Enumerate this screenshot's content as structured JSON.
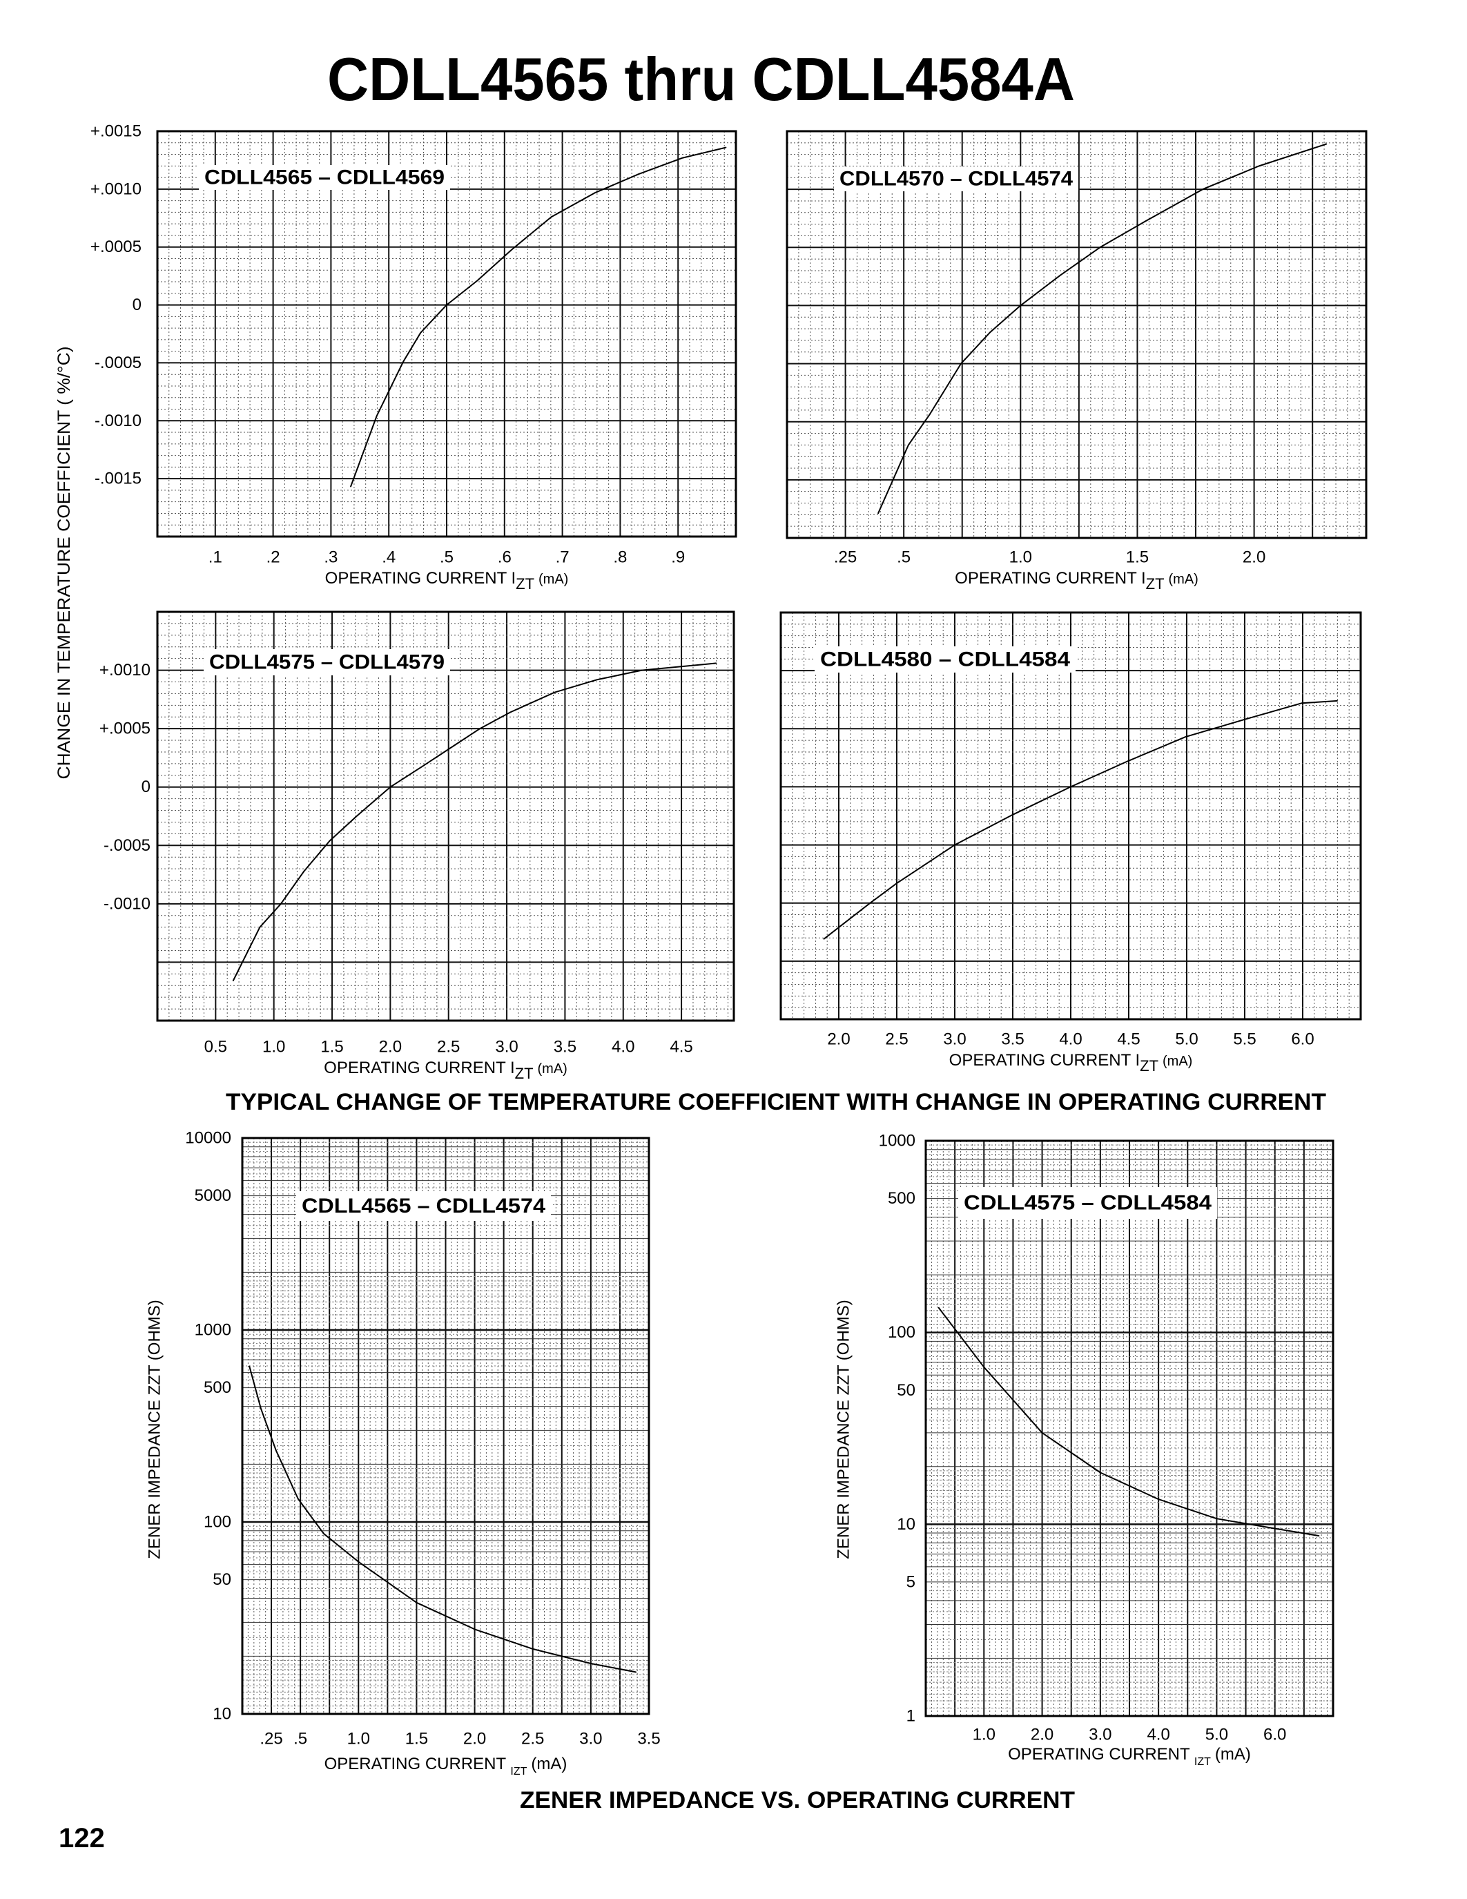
{
  "title": "CDLL4565 thru CDLL4584A",
  "page_number": "122",
  "section1": {
    "caption": "TYPICAL CHANGE OF TEMPERATURE COEFFICIENT WITH CHANGE IN OPERATING CURRENT",
    "ylabel": "CHANGE IN TEMPERATURE COEFFICIENT ( %/°C)"
  },
  "section2": {
    "caption": "ZENER IMPEDANCE VS. OPERATING CURRENT"
  },
  "chart_data": [
    {
      "type": "line",
      "title": "CDLL4565 – CDLL4569",
      "xlabel": "OPERATING CURRENT I",
      "xlabel_sub": "ZT",
      "xlabel_unit": "(mA)",
      "xscale": "linear",
      "yscale": "linear",
      "grid": true,
      "xlim": [
        0,
        1.0
      ],
      "ylim": [
        -0.002,
        0.0015
      ],
      "xticks": [
        0.1,
        0.2,
        0.3,
        0.4,
        0.5,
        0.6,
        0.7,
        0.8,
        0.9
      ],
      "xtick_labels": [
        ".1",
        ".2",
        ".3",
        ".4",
        ".5",
        ".6",
        ".7",
        ".8",
        ".9"
      ],
      "yticks": [
        0.0015,
        0.001,
        0.0005,
        0,
        -0.0005,
        -0.001,
        -0.0015
      ],
      "ytick_labels": [
        "+.0015",
        "+.0010",
        "+.0005",
        "0",
        "-.0005",
        "-.0010",
        "-.0015"
      ],
      "series": [
        {
          "x": [
            0.334,
            0.379,
            0.425,
            0.455,
            0.5,
            0.553,
            0.613,
            0.681,
            0.757,
            0.832,
            0.908,
            0.983
          ],
          "y": [
            -0.00157,
            -0.00096,
            -0.00049,
            -0.00024,
            0,
            0.00021,
            0.00048,
            0.00076,
            0.00097,
            0.00113,
            0.00127,
            0.00136
          ]
        }
      ]
    },
    {
      "type": "line",
      "title": "CDLL4570 – CDLL4574",
      "xlabel": "OPERATING CURRENT I",
      "xlabel_sub": "ZT",
      "xlabel_unit": "(mA)",
      "xscale": "linear",
      "yscale": "linear",
      "grid": true,
      "xlim": [
        0,
        2.48
      ],
      "ylim": [
        -0.002,
        0.0015
      ],
      "xticks": [
        0.25,
        0.5,
        1.0,
        1.5,
        2.0
      ],
      "xtick_labels": [
        ".25",
        ".5",
        "1.0",
        "1.5",
        "2.0"
      ],
      "yticks": [],
      "ytick_labels": [],
      "series": [
        {
          "x": [
            0.39,
            0.52,
            0.61,
            0.745,
            0.87,
            1.0,
            1.17,
            1.34,
            1.53,
            1.78,
            2.02,
            2.31
          ],
          "y": [
            -0.00179,
            -0.0012,
            -0.00094,
            -0.0005,
            -0.00023,
            0,
            0.00026,
            0.0005,
            0.00072,
            0.001,
            0.0012,
            0.00139
          ]
        }
      ]
    },
    {
      "type": "line",
      "title": "CDLL4575 – CDLL4579",
      "xlabel": "OPERATING CURRENT I",
      "xlabel_sub": "ZT",
      "xlabel_unit": "(mA)",
      "xscale": "linear",
      "yscale": "linear",
      "grid": true,
      "xlim": [
        0,
        4.95
      ],
      "ylim": [
        -0.002,
        0.0015
      ],
      "xticks": [
        0.5,
        1.0,
        1.5,
        2.0,
        2.5,
        3.0,
        3.5,
        4.0,
        4.5
      ],
      "xtick_labels": [
        "0.5",
        "1.0",
        "1.5",
        "2.0",
        "2.5",
        "3.0",
        "3.5",
        "4.0",
        "4.5"
      ],
      "yticks": [
        0.001,
        0.0005,
        0,
        -0.0005,
        -0.001
      ],
      "ytick_labels": [
        "+.0010",
        "+.0005",
        "0",
        "-.0005",
        "-.0010"
      ],
      "series": [
        {
          "x": [
            0.65,
            0.88,
            1.06,
            1.26,
            1.48,
            1.71,
            2.0,
            2.28,
            2.77,
            3.03,
            3.41,
            3.78,
            4.16,
            4.8
          ],
          "y": [
            -0.00166,
            -0.0012,
            -0.001,
            -0.00072,
            -0.00046,
            -0.00025,
            0,
            0.00018,
            0.0005,
            0.00064,
            0.00081,
            0.00092,
            0.001,
            0.00106
          ]
        }
      ]
    },
    {
      "type": "line",
      "title": "CDLL4580 – CDLL4584",
      "xlabel": "OPERATING CURRENT I",
      "xlabel_sub": "ZT",
      "xlabel_unit": "(mA)",
      "xscale": "linear",
      "yscale": "linear",
      "grid": true,
      "xlim": [
        1.5,
        6.5
      ],
      "ylim": [
        -0.002,
        0.0015
      ],
      "xticks": [
        2.0,
        2.5,
        3.0,
        3.5,
        4.0,
        4.5,
        5.0,
        5.5,
        6.0
      ],
      "xtick_labels": [
        "2.0",
        "2.5",
        "3.0",
        "3.5",
        "4.0",
        "4.5",
        "5.0",
        "5.5",
        "6.0"
      ],
      "yticks": [],
      "ytick_labels": [],
      "series": [
        {
          "x": [
            1.87,
            2.27,
            2.5,
            3.0,
            3.5,
            4.0,
            4.49,
            4.99,
            5.5,
            5.99,
            6.3
          ],
          "y": [
            -0.00131,
            -0.001,
            -0.00083,
            -0.0005,
            -0.00024,
            0,
            0.00022,
            0.00043,
            0.00058,
            0.00072,
            0.00074
          ]
        }
      ]
    },
    {
      "type": "line",
      "title": "CDLL4565 – CDLL4574",
      "xlabel": "OPERATING CURRENT ",
      "xlabel_sub": "IZT",
      "xlabel_unit": "(mA)",
      "ylabel": "ZENER IMPEDANCE ZZT (OHMS)",
      "xscale": "linear",
      "yscale": "log",
      "grid": true,
      "xlim": [
        0,
        3.5
      ],
      "ylim": [
        10,
        10000
      ],
      "xticks": [
        0.25,
        0.5,
        1.0,
        1.5,
        2.0,
        2.5,
        3.0,
        3.5
      ],
      "xtick_labels": [
        ".25",
        ".5",
        "1.0",
        "1.5",
        "2.0",
        "2.5",
        "3.0",
        "3.5"
      ],
      "yticks": [
        10000,
        5000,
        1000,
        500,
        100,
        50,
        10
      ],
      "ytick_labels": [
        "10000",
        "5000",
        "1000",
        "500",
        "100",
        "50",
        "10"
      ],
      "series": [
        {
          "x": [
            0.06,
            0.16,
            0.29,
            0.48,
            0.7,
            1.0,
            1.5,
            2.0,
            2.5,
            3.0,
            3.39
          ],
          "y": [
            650,
            390,
            236,
            132,
            87,
            62,
            38,
            27.6,
            21.8,
            18.3,
            16.5
          ]
        }
      ]
    },
    {
      "type": "line",
      "title": "CDLL4575 – CDLL4584",
      "xlabel": "OPERATING CURRENT ",
      "xlabel_sub": "IZT",
      "xlabel_unit": "(mA)",
      "ylabel": "ZENER IMPEDANCE ZZT (OHMS)",
      "xscale": "linear",
      "yscale": "log",
      "grid": true,
      "xlim": [
        0,
        7.0
      ],
      "ylim": [
        1,
        1000
      ],
      "xticks": [
        1.0,
        2.0,
        3.0,
        4.0,
        5.0,
        6.0
      ],
      "xtick_labels": [
        "1.0",
        "2.0",
        "3.0",
        "4.0",
        "5.0",
        "6.0"
      ],
      "yticks": [
        1000,
        500,
        100,
        50,
        10,
        5,
        1
      ],
      "ytick_labels": [
        "1000",
        "500",
        "100",
        "50",
        "10",
        "5",
        "1"
      ],
      "series": [
        {
          "x": [
            0.22,
            1.0,
            2.0,
            3.0,
            4.0,
            5.0,
            6.0,
            6.76
          ],
          "y": [
            135,
            66,
            30,
            18.6,
            13.5,
            10.7,
            9.5,
            8.7
          ]
        }
      ]
    }
  ]
}
